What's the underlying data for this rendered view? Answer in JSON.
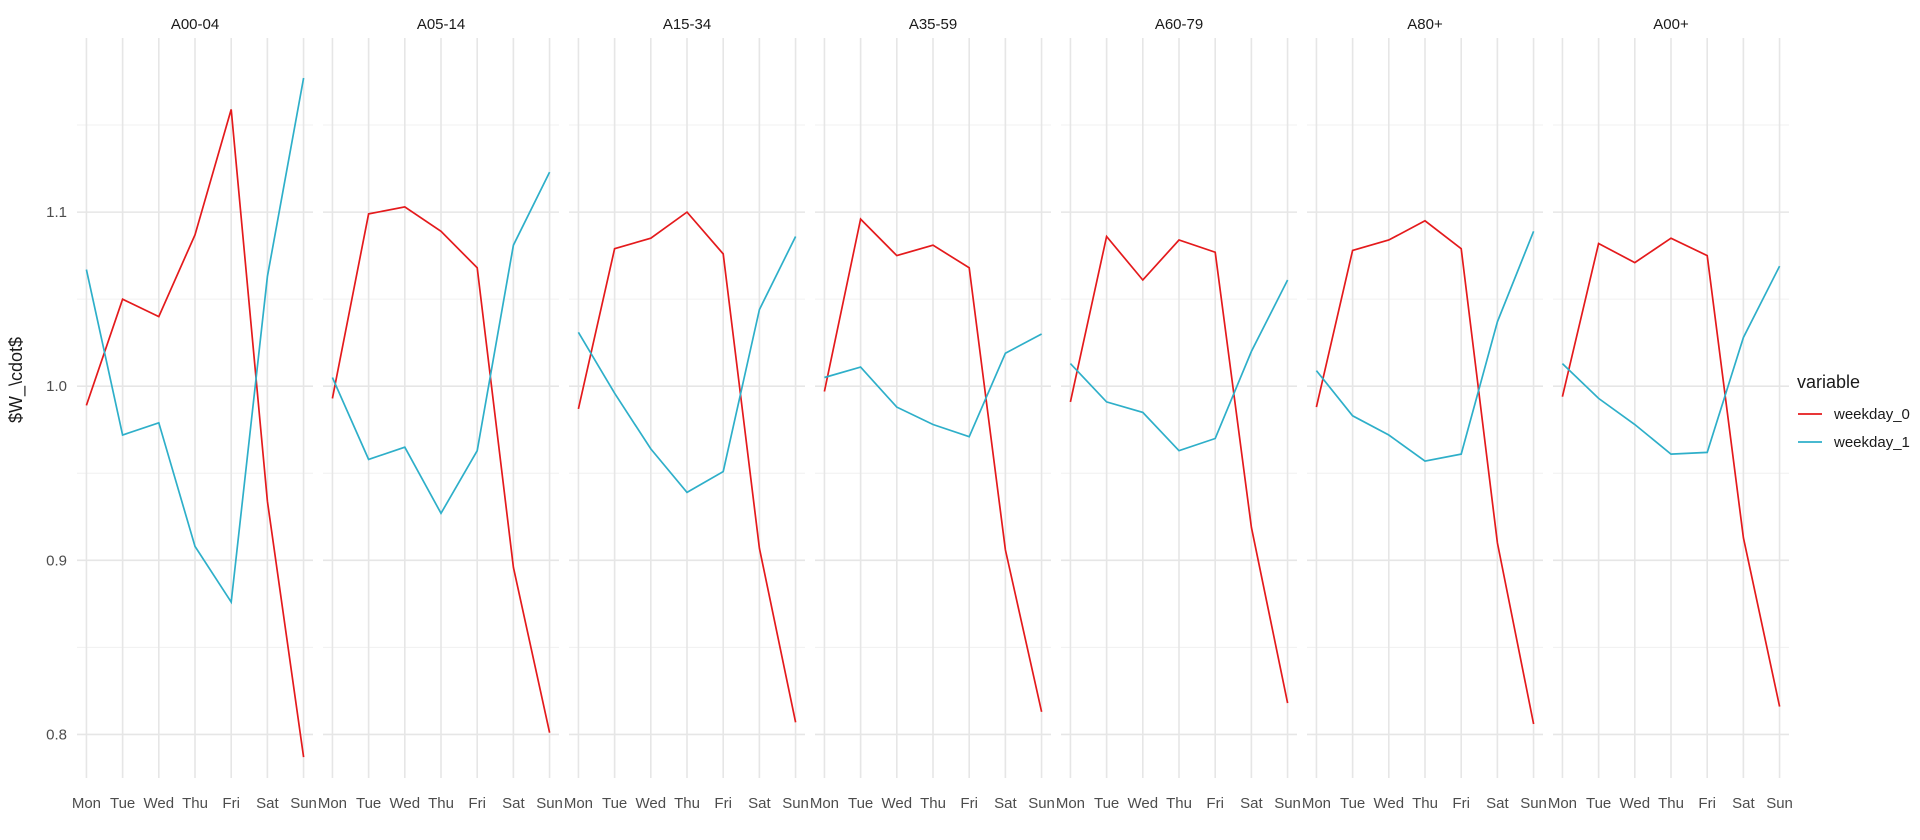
{
  "chart_data": {
    "type": "line",
    "ylabel": "$W_\\cdot$",
    "ylim": [
      0.775,
      1.2
    ],
    "yticks": [
      0.8,
      0.9,
      1.0,
      1.1
    ],
    "yticklabels": [
      "0.8",
      "0.9",
      "1.0",
      "1.1"
    ],
    "categories": [
      "Mon",
      "Tue",
      "Wed",
      "Thu",
      "Fri",
      "Sat",
      "Sun"
    ],
    "legend": {
      "title": "variable",
      "position": "right",
      "entries": [
        {
          "name": "weekday_0",
          "color": "#e41a1c"
        },
        {
          "name": "weekday_1",
          "color": "#2eafc9"
        }
      ]
    },
    "series_colors": {
      "weekday_0": "#e41a1c",
      "weekday_1": "#2eafc9"
    },
    "panels": [
      {
        "title": "A00-04",
        "series": [
          {
            "name": "weekday_0",
            "values": [
              0.989,
              1.05,
              1.04,
              1.087,
              1.159,
              0.934,
              0.787
            ]
          },
          {
            "name": "weekday_1",
            "values": [
              1.067,
              0.972,
              0.979,
              0.908,
              0.876,
              1.063,
              1.177
            ]
          }
        ]
      },
      {
        "title": "A05-14",
        "series": [
          {
            "name": "weekday_0",
            "values": [
              0.993,
              1.099,
              1.103,
              1.089,
              1.068,
              0.896,
              0.801
            ]
          },
          {
            "name": "weekday_1",
            "values": [
              1.005,
              0.958,
              0.965,
              0.927,
              0.963,
              1.081,
              1.123
            ]
          }
        ]
      },
      {
        "title": "A15-34",
        "series": [
          {
            "name": "weekday_0",
            "values": [
              0.987,
              1.079,
              1.085,
              1.1,
              1.076,
              0.907,
              0.807
            ]
          },
          {
            "name": "weekday_1",
            "values": [
              1.031,
              0.996,
              0.964,
              0.939,
              0.951,
              1.044,
              1.086
            ]
          }
        ]
      },
      {
        "title": "A35-59",
        "series": [
          {
            "name": "weekday_0",
            "values": [
              0.997,
              1.096,
              1.075,
              1.081,
              1.068,
              0.906,
              0.813
            ]
          },
          {
            "name": "weekday_1",
            "values": [
              1.005,
              1.011,
              0.988,
              0.978,
              0.971,
              1.019,
              1.03
            ]
          }
        ]
      },
      {
        "title": "A60-79",
        "series": [
          {
            "name": "weekday_0",
            "values": [
              0.991,
              1.086,
              1.061,
              1.084,
              1.077,
              0.919,
              0.818
            ]
          },
          {
            "name": "weekday_1",
            "values": [
              1.013,
              0.991,
              0.985,
              0.963,
              0.97,
              1.02,
              1.061
            ]
          }
        ]
      },
      {
        "title": "A80+",
        "series": [
          {
            "name": "weekday_0",
            "values": [
              0.988,
              1.078,
              1.084,
              1.095,
              1.079,
              0.91,
              0.806
            ]
          },
          {
            "name": "weekday_1",
            "values": [
              1.009,
              0.983,
              0.972,
              0.957,
              0.961,
              1.037,
              1.089
            ]
          }
        ]
      },
      {
        "title": "A00+",
        "series": [
          {
            "name": "weekday_0",
            "values": [
              0.994,
              1.082,
              1.071,
              1.085,
              1.075,
              0.913,
              0.816
            ]
          },
          {
            "name": "weekday_1",
            "values": [
              1.013,
              0.993,
              0.978,
              0.961,
              0.962,
              1.028,
              1.069
            ]
          }
        ]
      }
    ]
  }
}
